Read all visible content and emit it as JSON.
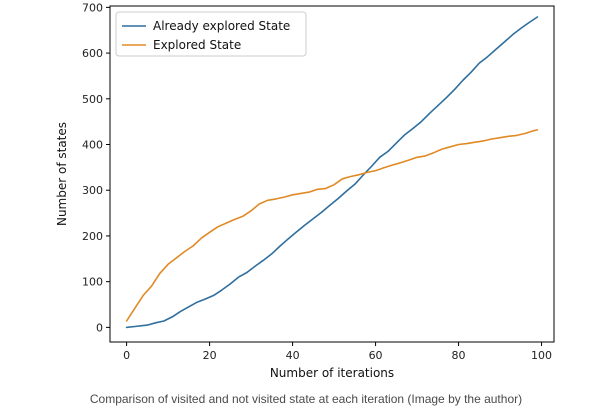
{
  "caption": "Comparison of visited and not visited state at each iteration (Image by the author)",
  "chart_data": {
    "type": "line",
    "title": "",
    "xlabel": "Number of iterations",
    "ylabel": "Number of states",
    "xlim": [
      -4,
      103
    ],
    "ylim": [
      -32,
      703
    ],
    "xticks": [
      0,
      20,
      40,
      60,
      80,
      100
    ],
    "yticks": [
      0,
      100,
      200,
      300,
      400,
      500,
      600,
      700
    ],
    "xtick_labels": [
      "0",
      "20",
      "40",
      "60",
      "80",
      "100"
    ],
    "ytick_labels": [
      "0",
      "100",
      "200",
      "300",
      "400",
      "500",
      "600",
      "700"
    ],
    "grid": false,
    "legend_position": "top-left",
    "series": [
      {
        "name": "Already explored State",
        "color": "#2f6f9f",
        "x": [
          0,
          2,
          5,
          7,
          9,
          11,
          13,
          15,
          17,
          19,
          21,
          23,
          25,
          27,
          29,
          31,
          33,
          35,
          37,
          39,
          41,
          43,
          45,
          47,
          49,
          51,
          53,
          55,
          57,
          59,
          61,
          63,
          65,
          67,
          69,
          71,
          73,
          75,
          77,
          79,
          81,
          83,
          85,
          87,
          89,
          91,
          93,
          95,
          97,
          99
        ],
        "y": [
          0,
          2,
          5,
          10,
          14,
          23,
          35,
          45,
          55,
          62,
          70,
          82,
          95,
          110,
          120,
          134,
          147,
          161,
          178,
          194,
          209,
          224,
          238,
          252,
          267,
          282,
          298,
          313,
          333,
          352,
          372,
          385,
          403,
          421,
          435,
          450,
          468,
          485,
          502,
          520,
          540,
          558,
          578,
          592,
          608,
          624,
          640,
          654,
          667,
          679
        ]
      },
      {
        "name": "Explored State",
        "color": "#e08a25",
        "x": [
          0,
          2,
          4,
          6,
          8,
          10,
          12,
          14,
          16,
          18,
          20,
          22,
          24,
          26,
          28,
          30,
          32,
          34,
          36,
          38,
          40,
          42,
          44,
          46,
          48,
          50,
          52,
          54,
          56,
          58,
          60,
          62,
          64,
          66,
          68,
          70,
          72,
          74,
          76,
          78,
          80,
          82,
          84,
          86,
          88,
          90,
          92,
          94,
          96,
          98,
          99
        ],
        "y": [
          14,
          42,
          70,
          90,
          118,
          138,
          152,
          166,
          178,
          195,
          208,
          220,
          228,
          236,
          243,
          255,
          270,
          278,
          281,
          285,
          290,
          293,
          296,
          302,
          304,
          312,
          325,
          330,
          334,
          339,
          343,
          349,
          355,
          360,
          366,
          372,
          375,
          382,
          390,
          395,
          400,
          402,
          405,
          408,
          412,
          415,
          418,
          420,
          424,
          430,
          432
        ]
      }
    ]
  }
}
